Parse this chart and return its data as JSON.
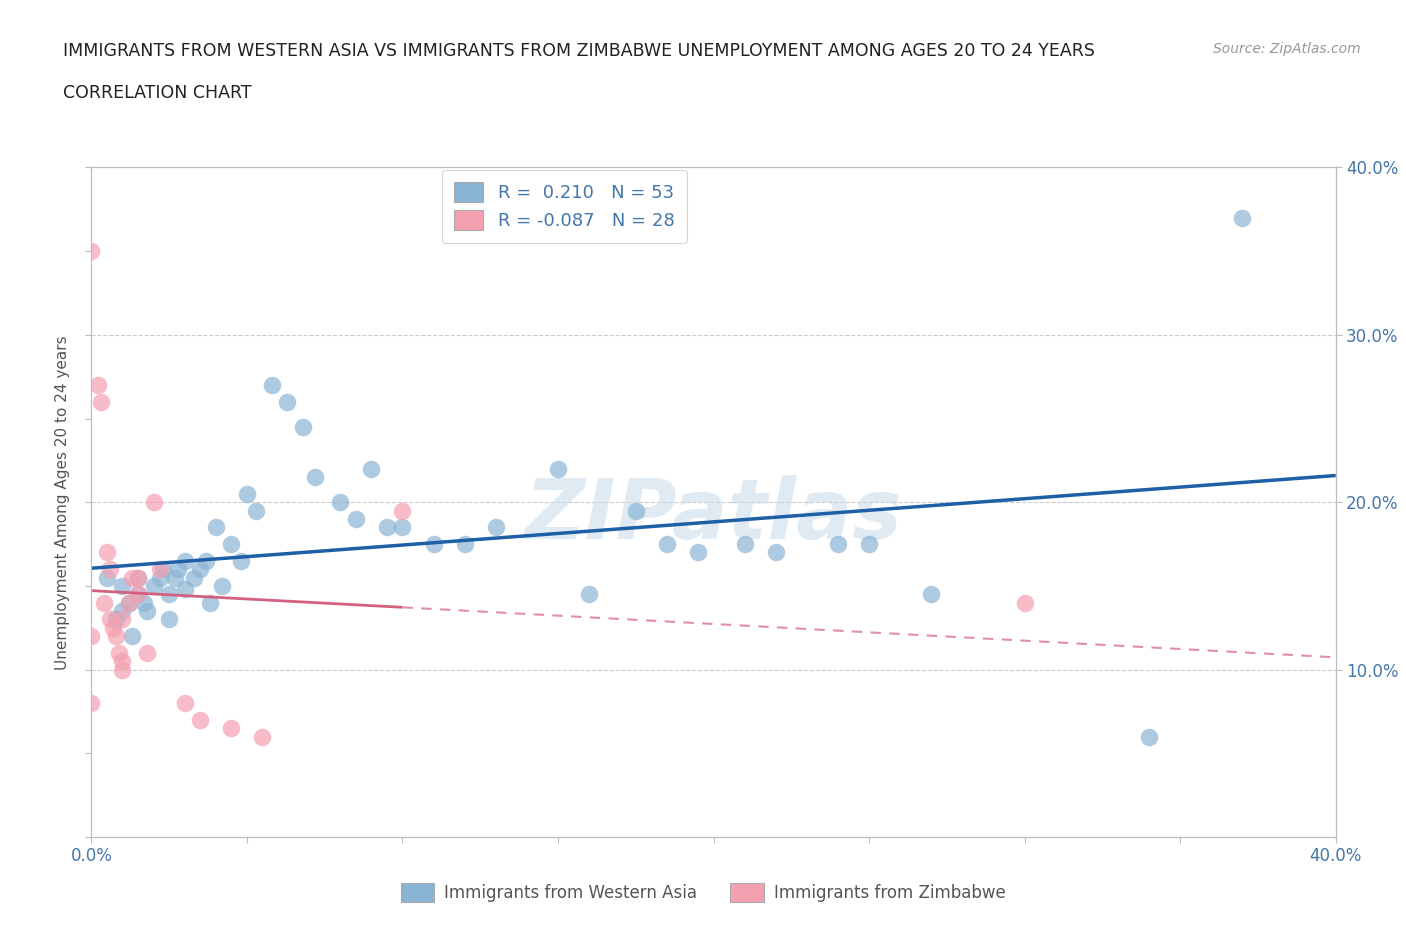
{
  "title_line1": "IMMIGRANTS FROM WESTERN ASIA VS IMMIGRANTS FROM ZIMBABWE UNEMPLOYMENT AMONG AGES 20 TO 24 YEARS",
  "title_line2": "CORRELATION CHART",
  "source_text": "Source: ZipAtlas.com",
  "ylabel": "Unemployment Among Ages 20 to 24 years",
  "xmin": 0.0,
  "xmax": 0.4,
  "ymin": 0.0,
  "ymax": 0.4,
  "background_color": "#ffffff",
  "watermark": "ZIPatlas",
  "blue_scatter_color": "#8ab4d4",
  "pink_scatter_color": "#f4a0b0",
  "blue_line_color": "#1f5fa6",
  "pink_line_color": "#d46080",
  "text_color": "#4477aa",
  "title_color": "#222222",
  "grid_color": "#cccccc",
  "r_blue": 0.21,
  "n_blue": 53,
  "r_pink": -0.087,
  "n_pink": 28,
  "legend_label_blue": "Immigrants from Western Asia",
  "legend_label_pink": "Immigrants from Zimbabwe",
  "blue_x": [
    0.005,
    0.008,
    0.01,
    0.01,
    0.012,
    0.013,
    0.015,
    0.015,
    0.017,
    0.018,
    0.02,
    0.022,
    0.023,
    0.025,
    0.025,
    0.027,
    0.028,
    0.03,
    0.03,
    0.033,
    0.035,
    0.037,
    0.038,
    0.04,
    0.042,
    0.045,
    0.048,
    0.05,
    0.053,
    0.058,
    0.063,
    0.068,
    0.072,
    0.08,
    0.085,
    0.09,
    0.095,
    0.1,
    0.11,
    0.12,
    0.13,
    0.15,
    0.16,
    0.175,
    0.185,
    0.195,
    0.21,
    0.22,
    0.24,
    0.25,
    0.27,
    0.34,
    0.37
  ],
  "blue_y": [
    0.155,
    0.13,
    0.15,
    0.135,
    0.14,
    0.12,
    0.155,
    0.145,
    0.14,
    0.135,
    0.15,
    0.155,
    0.16,
    0.145,
    0.13,
    0.155,
    0.16,
    0.165,
    0.148,
    0.155,
    0.16,
    0.165,
    0.14,
    0.185,
    0.15,
    0.175,
    0.165,
    0.205,
    0.195,
    0.27,
    0.26,
    0.245,
    0.215,
    0.2,
    0.19,
    0.22,
    0.185,
    0.185,
    0.175,
    0.175,
    0.185,
    0.22,
    0.145,
    0.195,
    0.175,
    0.17,
    0.175,
    0.17,
    0.175,
    0.175,
    0.145,
    0.06,
    0.37
  ],
  "pink_x": [
    0.0,
    0.0,
    0.0,
    0.002,
    0.003,
    0.004,
    0.005,
    0.006,
    0.006,
    0.007,
    0.008,
    0.009,
    0.01,
    0.01,
    0.01,
    0.012,
    0.013,
    0.015,
    0.015,
    0.018,
    0.02,
    0.022,
    0.03,
    0.035,
    0.045,
    0.055,
    0.1,
    0.3
  ],
  "pink_y": [
    0.35,
    0.12,
    0.08,
    0.27,
    0.26,
    0.14,
    0.17,
    0.16,
    0.13,
    0.125,
    0.12,
    0.11,
    0.105,
    0.13,
    0.1,
    0.14,
    0.155,
    0.155,
    0.145,
    0.11,
    0.2,
    0.16,
    0.08,
    0.07,
    0.065,
    0.06,
    0.195,
    0.14
  ]
}
